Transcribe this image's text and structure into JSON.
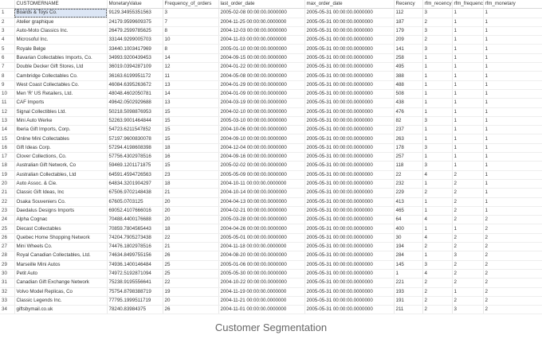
{
  "grid": {
    "columns": [
      "",
      "CUSTOMERNAME",
      "MonetaryValue",
      "Frequency_of_orders",
      "last_order_date",
      "max_order_date",
      "Recency",
      "rfm_recency",
      "rfm_frequency",
      "rfm_monetary"
    ],
    "rows": [
      [
        "1",
        "Boards & Toys Co.",
        "9129.34955351563",
        "3",
        "2005-02-08 00:00:00.0000000",
        "2005-05-31 00:00:00.0000000",
        "112",
        "3",
        "1",
        "1"
      ],
      [
        "2",
        "Atelier graphique",
        "24179.9599609375",
        "7",
        "2004-11-25 00:00:00.0000000",
        "2005-05-31 00:00:00.0000000",
        "187",
        "2",
        "1",
        "1"
      ],
      [
        "3",
        "Auto-Moto Classics Inc.",
        "26479.2599785625",
        "8",
        "2004-12-03 00:00:00.0000000",
        "2005-05-31 00:00:00.0000000",
        "179",
        "3",
        "1",
        "1"
      ],
      [
        "4",
        "Microsoful Inc.",
        "33144.9299005703",
        "10",
        "2004-11-03 00:00:00.0000000",
        "2005-05-31 00:00:00.0000000",
        "209",
        "2",
        "1",
        "1"
      ],
      [
        "5",
        "Royale Belge",
        "33440.1003417969",
        "8",
        "2005-01-10 00:00:00.0000000",
        "2005-05-31 00:00:00.0000000",
        "141",
        "3",
        "1",
        "1"
      ],
      [
        "6",
        "Bavarian Collectables Imports, Co.",
        "34993.9200439453",
        "14",
        "2004-09-15 00:00:00.0000000",
        "2005-05-31 00:00:00.0000000",
        "258",
        "1",
        "1",
        "1"
      ],
      [
        "7",
        "Double Decker Gift Stores, Ltd",
        "36019.0394287109",
        "12",
        "2004-01-22 00:00:00.0000000",
        "2005-05-31 00:00:00.0000000",
        "495",
        "1",
        "1",
        "1"
      ],
      [
        "8",
        "Cambridge Collectables Co.",
        "36163.6199951172",
        "11",
        "2004-05-08 00:00:00.0000000",
        "2005-05-31 00:00:00.0000000",
        "388",
        "1",
        "1",
        "1"
      ],
      [
        "9",
        "West Coast Collectables Co.",
        "46084.6395263672",
        "13",
        "2004-01-29 00:00:00.0000000",
        "2005-05-31 00:00:00.0000000",
        "488",
        "1",
        "1",
        "1"
      ],
      [
        "10",
        "Men 'R' US Retailers, Ltd.",
        "48048.4602050781",
        "14",
        "2004-01-09 00:00:00.0000000",
        "2005-05-31 00:00:00.0000000",
        "508",
        "1",
        "1",
        "1"
      ],
      [
        "11",
        "CAF Imports",
        "49642.0502929688",
        "13",
        "2004-03-19 00:00:00.0000000",
        "2005-05-31 00:00:00.0000000",
        "438",
        "1",
        "1",
        "1"
      ],
      [
        "12",
        "Signal Collectibles Ltd.",
        "50218.5098876953",
        "15",
        "2004-02-10 00:00:00.0000000",
        "2005-05-31 00:00:00.0000000",
        "476",
        "1",
        "1",
        "1"
      ],
      [
        "13",
        "Mini Auto Werke",
        "52263.9001464844",
        "15",
        "2005-03-10 00:00:00.0000000",
        "2005-05-31 00:00:00.0000000",
        "82",
        "3",
        "1",
        "1"
      ],
      [
        "14",
        "Iberia Gift Imports, Corp.",
        "54723.6211547852",
        "15",
        "2004-10-06 00:00:00.0000000",
        "2005-05-31 00:00:00.0000000",
        "237",
        "1",
        "1",
        "1"
      ],
      [
        "15",
        "Online Mini Collectables",
        "57197.9600830078",
        "15",
        "2004-09-10 00:00:00.0000000",
        "2005-05-31 00:00:00.0000000",
        "263",
        "1",
        "1",
        "1"
      ],
      [
        "16",
        "Gift Ideas Corp.",
        "57294.4198608398",
        "18",
        "2004-12-04 00:00:00.0000000",
        "2005-05-31 00:00:00.0000000",
        "178",
        "3",
        "1",
        "1"
      ],
      [
        "17",
        "Clover Collections, Co.",
        "57756.4302978516",
        "16",
        "2004-09-16 00:00:00.0000000",
        "2005-05-31 00:00:00.0000000",
        "257",
        "1",
        "1",
        "1"
      ],
      [
        "18",
        "Australian Gift Network, Co",
        "59469.1201171875",
        "15",
        "2005-02-02 00:00:00.0000000",
        "2005-05-31 00:00:00.0000000",
        "118",
        "3",
        "1",
        "1"
      ],
      [
        "19",
        "Australian Collectables, Ltd",
        "64591.4594726563",
        "23",
        "2005-05-09 00:00:00.0000000",
        "2005-05-31 00:00:00.0000000",
        "22",
        "4",
        "2",
        "1"
      ],
      [
        "20",
        "Auto Assoc. & Cie.",
        "64834.3201904297",
        "18",
        "2004-10-11 00:00:00.0000000",
        "2005-05-31 00:00:00.0000000",
        "232",
        "1",
        "2",
        "1"
      ],
      [
        "21",
        "Classic Gift Ideas, Inc",
        "67506.9702148438",
        "21",
        "2004-10-14 00:00:00.0000000",
        "2005-05-31 00:00:00.0000000",
        "229",
        "2",
        "2",
        "1"
      ],
      [
        "22",
        "Osaka Souveniers Co.",
        "67605.0703125",
        "20",
        "2004-04-13 00:00:00.0000000",
        "2005-05-31 00:00:00.0000000",
        "413",
        "1",
        "2",
        "1"
      ],
      [
        "23",
        "Daedalus Designs Imports",
        "69052.4107666016",
        "20",
        "2004-02-21 00:00:00.0000000",
        "2005-05-31 00:00:00.0000000",
        "465",
        "1",
        "2",
        "1"
      ],
      [
        "24",
        "Alpha Cognac",
        "70488.4400176688",
        "20",
        "2005-03-28 00:00:00.0000000",
        "2005-05-31 00:00:00.0000000",
        "64",
        "4",
        "2",
        "2"
      ],
      [
        "25",
        "Diecast Collectables",
        "70859.7804565443",
        "18",
        "2004-04-26 00:00:00.0000000",
        "2005-05-31 00:00:00.0000000",
        "400",
        "1",
        "1",
        "2"
      ],
      [
        "26",
        "Quebec Home Shopping Network",
        "74204.7905273438",
        "22",
        "2005-05-01 00:00:00.0000000",
        "2005-05-31 00:00:00.0000000",
        "30",
        "4",
        "2",
        "2"
      ],
      [
        "27",
        "Mini Wheels Co.",
        "74476.1802978516",
        "21",
        "2004-11-18 00:00:00.0000000",
        "2005-05-31 00:00:00.0000000",
        "194",
        "2",
        "2",
        "2"
      ],
      [
        "28",
        "Royal Canadian Collectables, Ltd.",
        "74634.8499755156",
        "26",
        "2004-08-20 00:00:00.0000000",
        "2005-05-31 00:00:00.0000000",
        "284",
        "1",
        "3",
        "2"
      ],
      [
        "29",
        "Marseille Mini Autos",
        "74936.1400146484",
        "25",
        "2005-01-06 00:00:00.0000000",
        "2005-05-31 00:00:00.0000000",
        "145",
        "3",
        "2",
        "2"
      ],
      [
        "30",
        "Petit Auto",
        "74972.5192871094",
        "25",
        "2005-05-30 00:00:00.0000000",
        "2005-05-31 00:00:00.0000000",
        "1",
        "4",
        "2",
        "2"
      ],
      [
        "31",
        "Canadian Gift Exchange Network",
        "75238.9195556641",
        "22",
        "2004-10-22 00:00:00.0000000",
        "2005-05-31 00:00:00.0000000",
        "221",
        "2",
        "2",
        "2"
      ],
      [
        "32",
        "Volvo Model Replicas, Co",
        "75754.8798388719",
        "19",
        "2004-11-19 00:00:00.0000000",
        "2005-05-31 00:00:00.0000000",
        "193",
        "2",
        "1",
        "2"
      ],
      [
        "33",
        "Classic Legends Inc.",
        "77795.1999511719",
        "20",
        "2004-11-21 00:00:00.0000000",
        "2005-05-31 00:00:00.0000000",
        "191",
        "2",
        "2",
        "2"
      ],
      [
        "34",
        "giftsbymail.co.uk",
        "78240.83984375",
        "26",
        "2004-11-01 00:00:00.0000000",
        "2005-05-31 00:00:00.0000000",
        "211",
        "2",
        "3",
        "2"
      ]
    ]
  },
  "caption": "Customer Segmentation"
}
